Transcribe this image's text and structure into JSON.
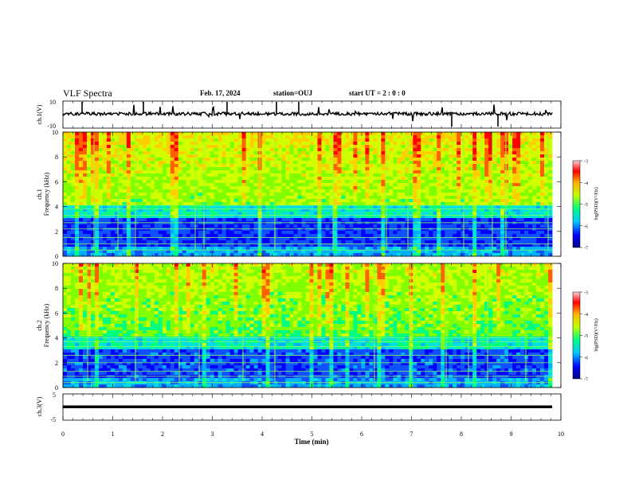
{
  "header": {
    "title": "VLF Spectra",
    "date": "Feb. 17, 2024",
    "station": "station=OUJ",
    "start": "start UT =  2 : 0 : 0"
  },
  "chart_data": [
    {
      "type": "line",
      "ylabel": "ch.1(V)",
      "ylim": [
        -10,
        10
      ],
      "y_ticks": [
        "10",
        "-10"
      ],
      "xlim": [
        0,
        10
      ]
    },
    {
      "type": "heatmap",
      "ylabel": "ch.1\nFrequency (kHz)",
      "ylabel_lines": [
        "ch.1",
        "Frequency (kHz)"
      ],
      "ylim": [
        0,
        10
      ],
      "y_ticks": [
        "0",
        "2",
        "4",
        "6",
        "8",
        "10"
      ],
      "xlim": [
        0,
        10
      ],
      "colorbar": {
        "label": "log(PSD)(V²/Hz)",
        "range": [
          -7,
          -3
        ],
        "ticks": [
          "-3",
          "-4",
          "-5",
          "-6",
          "-7"
        ]
      }
    },
    {
      "type": "heatmap",
      "ylabel": "ch.2\nFrequency (kHz)",
      "ylabel_lines": [
        "ch.2",
        "Frequency (kHz)"
      ],
      "ylim": [
        0,
        10
      ],
      "y_ticks": [
        "0",
        "2",
        "4",
        "6",
        "8",
        "10"
      ],
      "xlim": [
        0,
        10
      ],
      "colorbar": {
        "label": "log(PSD)(V²/Hz)",
        "range": [
          -7,
          -3
        ],
        "ticks": [
          "-3",
          "-4",
          "-5",
          "-6",
          "-7"
        ]
      }
    },
    {
      "type": "line",
      "ylabel": "ch.3(V)",
      "ylim": [
        -5,
        5
      ],
      "y_ticks": [
        "5",
        "0",
        "-5"
      ],
      "xlim": [
        0,
        10
      ],
      "xlabel": "Time (min)",
      "x_ticks": [
        "0",
        "1",
        "2",
        "3",
        "4",
        "5",
        "6",
        "7",
        "8",
        "9",
        "10"
      ]
    }
  ],
  "colors": {
    "background": "#ffffff",
    "axes": "#000000",
    "colormap": [
      "#000080",
      "#0000ff",
      "#00c8ff",
      "#00ff80",
      "#c0ff00",
      "#ffb000",
      "#ff0000",
      "#ffd0d0"
    ]
  }
}
